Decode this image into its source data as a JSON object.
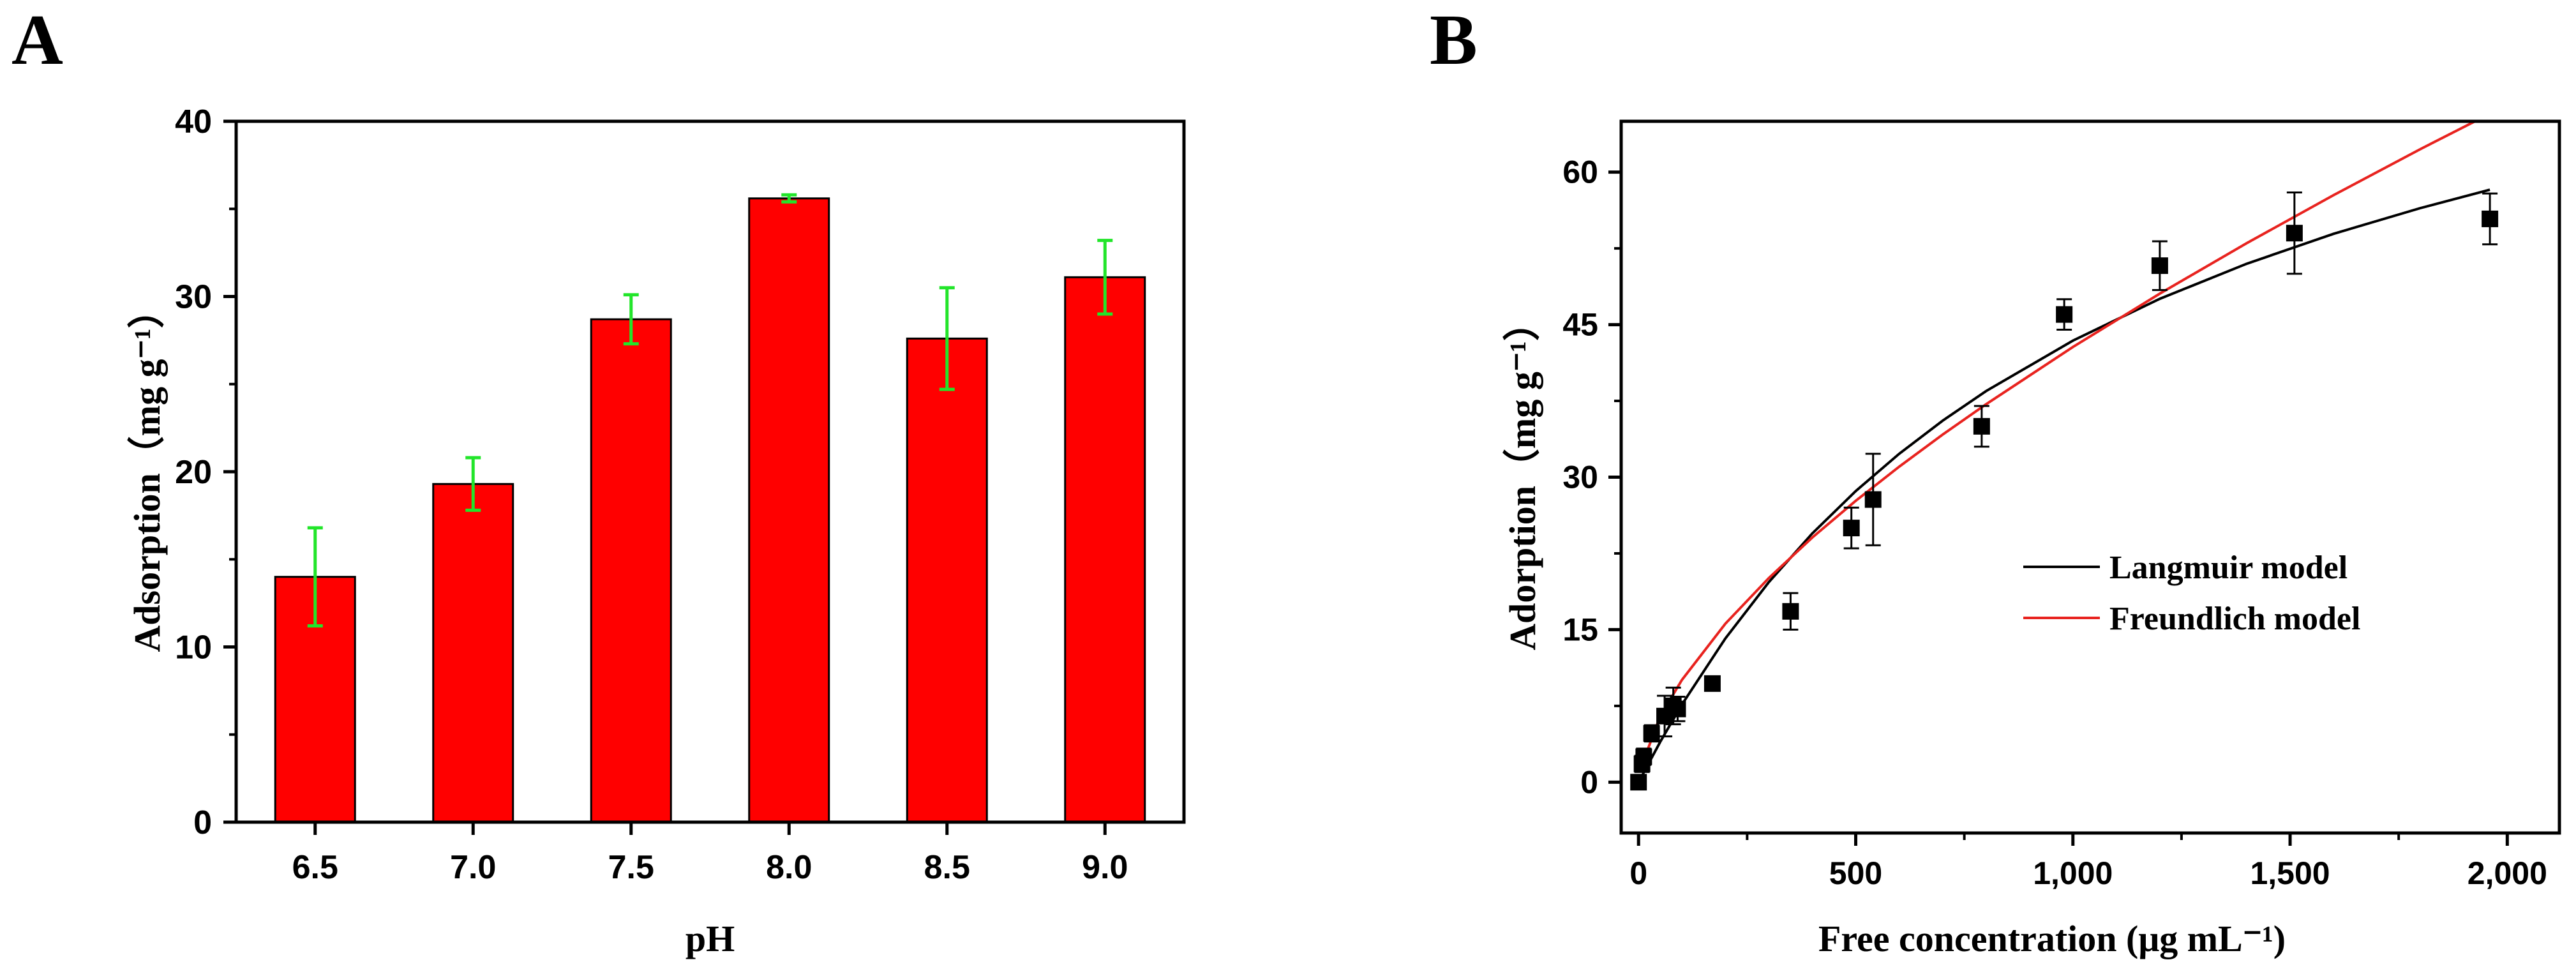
{
  "panels": {
    "a_label": "A",
    "b_label": "B"
  },
  "chart_data": [
    {
      "type": "bar",
      "panel": "A",
      "categories": [
        "6.5",
        "7.0",
        "7.5",
        "8.0",
        "8.5",
        "9.0"
      ],
      "values": [
        14.0,
        19.3,
        28.7,
        35.6,
        27.6,
        31.1
      ],
      "errors": [
        2.8,
        1.5,
        1.4,
        0.2,
        2.9,
        2.1
      ],
      "xlabel": "pH",
      "ylabel": "Adsorption（mg g⁻¹）",
      "ylim": [
        0,
        40
      ],
      "yticks": [
        0,
        10,
        20,
        30,
        40
      ],
      "colors": {
        "bar": "#ff0000",
        "bar_edge": "#000000",
        "error": "#22e52a"
      }
    },
    {
      "type": "scatter",
      "panel": "B",
      "xlabel": "Free concentration (μg mL⁻¹)",
      "ylabel": "Adorption（mg g⁻¹）",
      "xlim": [
        -40,
        2120
      ],
      "ylim": [
        -5,
        65
      ],
      "xticks": [
        0,
        500,
        1000,
        1500,
        2000
      ],
      "xtick_labels": [
        "0",
        "500",
        "1,000",
        "1,500",
        "2,000"
      ],
      "yticks": [
        0,
        15,
        30,
        45,
        60
      ],
      "points": {
        "x": [
          0,
          8,
          12,
          30,
          60,
          80,
          90,
          170,
          350,
          490,
          540,
          790,
          980,
          1200,
          1510,
          1960
        ],
        "y": [
          0,
          1.8,
          2.5,
          4.8,
          6.5,
          7.5,
          7.2,
          9.7,
          16.8,
          25.0,
          27.8,
          35.0,
          46.0,
          50.8,
          54.0,
          55.4
        ],
        "err": [
          0.6,
          0.8,
          0.8,
          0.8,
          2.0,
          1.8,
          1.2,
          0.5,
          1.8,
          2.0,
          4.5,
          2.0,
          1.5,
          2.4,
          4.0,
          2.5
        ]
      },
      "series": [
        {
          "name": "Langmuir model",
          "color": "#000000",
          "x": [
            0,
            50,
            100,
            200,
            300,
            400,
            500,
            600,
            700,
            800,
            1000,
            1200,
            1400,
            1600,
            1800,
            1960
          ],
          "y": [
            0,
            3.98,
            7.65,
            14.14,
            19.68,
            24.46,
            28.63,
            32.3,
            35.55,
            38.46,
            43.43,
            47.54,
            50.99,
            53.93,
            56.46,
            58.27
          ]
        },
        {
          "name": "Freundlich model",
          "color": "#e8231f",
          "x": [
            5,
            50,
            100,
            200,
            300,
            400,
            500,
            600,
            700,
            800,
            1000,
            1200,
            1400,
            1600,
            1800,
            1960
          ],
          "y": [
            1.38,
            6.51,
            10.07,
            15.59,
            20.08,
            24.06,
            27.67,
            31.03,
            34.18,
            37.17,
            42.8,
            48.05,
            53.01,
            57.73,
            62.26,
            65.74
          ]
        }
      ],
      "legend_position": "center-right"
    }
  ]
}
